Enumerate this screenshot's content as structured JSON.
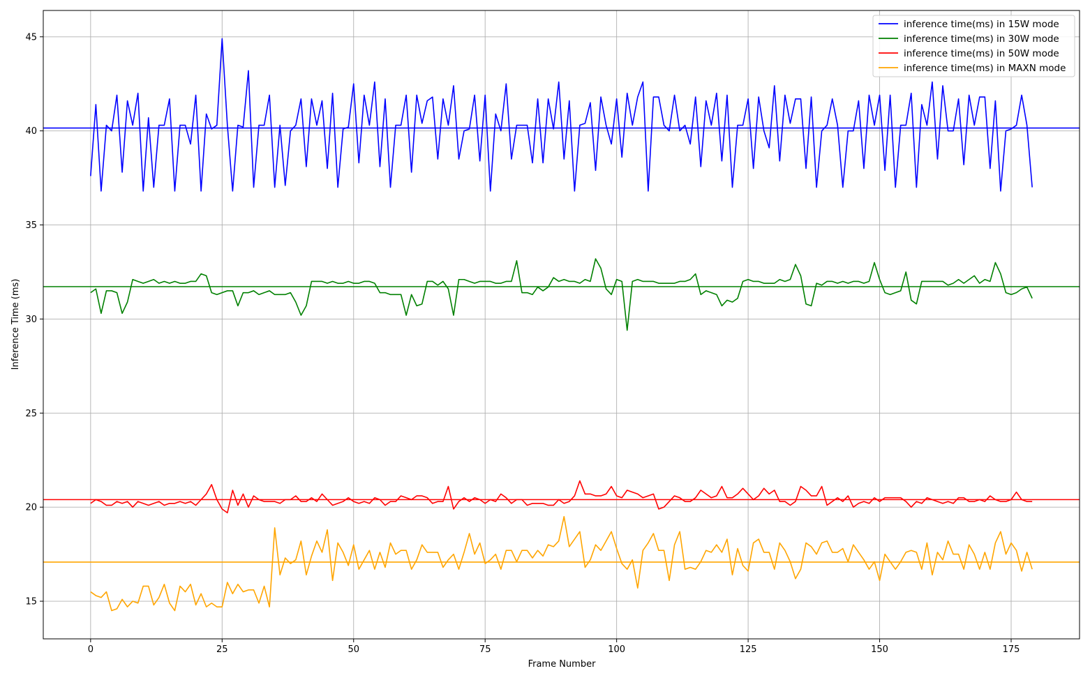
{
  "chart_data": {
    "type": "line",
    "title": "",
    "xlabel": "Frame Number",
    "ylabel": "Inference Time (ms)",
    "xlim": [
      -9,
      188
    ],
    "ylim": [
      13,
      46.4
    ],
    "xticks": [
      0,
      25,
      50,
      75,
      100,
      125,
      150,
      175
    ],
    "yticks": [
      15,
      20,
      25,
      30,
      35,
      40,
      45
    ],
    "grid": true,
    "legend_position": "top-right",
    "series": [
      {
        "name": "inference time(ms) in 15W mode",
        "color": "#0000ff",
        "mean": 40.15,
        "values": [
          37.6,
          41.4,
          36.8,
          40.3,
          40.0,
          41.9,
          37.8,
          41.6,
          40.3,
          42.0,
          36.8,
          40.7,
          37.0,
          40.3,
          40.3,
          41.7,
          36.8,
          40.3,
          40.3,
          39.3,
          41.9,
          36.8,
          40.9,
          40.1,
          40.3,
          44.9,
          40.3,
          36.8,
          40.3,
          40.2,
          43.2,
          37.0,
          40.3,
          40.3,
          41.9,
          37.0,
          40.3,
          37.1,
          40.0,
          40.3,
          41.7,
          38.1,
          41.7,
          40.3,
          41.6,
          38.0,
          42.0,
          37.0,
          40.1,
          40.2,
          42.5,
          38.3,
          41.9,
          40.3,
          42.6,
          38.1,
          41.7,
          37.0,
          40.3,
          40.3,
          41.9,
          37.8,
          41.9,
          40.4,
          41.6,
          41.8,
          38.5,
          41.7,
          40.3,
          42.4,
          38.5,
          40.0,
          40.1,
          41.9,
          38.4,
          41.9,
          36.8,
          40.9,
          40.0,
          42.5,
          38.5,
          40.3,
          40.3,
          40.3,
          38.3,
          41.7,
          38.3,
          41.7,
          40.1,
          42.6,
          38.5,
          41.6,
          36.8,
          40.3,
          40.4,
          41.5,
          37.9,
          41.8,
          40.3,
          39.3,
          41.7,
          38.6,
          42.0,
          40.3,
          41.8,
          42.6,
          36.8,
          41.8,
          41.8,
          40.3,
          40.0,
          41.9,
          40.0,
          40.3,
          39.3,
          41.8,
          38.1,
          41.6,
          40.3,
          42.0,
          38.4,
          41.9,
          37.0,
          40.3,
          40.3,
          41.7,
          38.0,
          41.8,
          40.0,
          39.1,
          42.4,
          38.4,
          41.9,
          40.4,
          41.7,
          41.7,
          38.0,
          41.8,
          37.0,
          40.0,
          40.3,
          41.7,
          40.3,
          37.0,
          40.0,
          40.0,
          41.6,
          38.0,
          41.9,
          40.3,
          41.9,
          37.9,
          41.9,
          37.0,
          40.3,
          40.3,
          42.0,
          37.0,
          41.4,
          40.3,
          42.6,
          38.5,
          42.4,
          40.0,
          40.0,
          41.7,
          38.2,
          41.9,
          40.3,
          41.8,
          41.8,
          38.0,
          41.6,
          36.8,
          40.0,
          40.1,
          40.3,
          41.9,
          40.3,
          37.0
        ]
      },
      {
        "name": "inference time(ms) in 30W mode",
        "color": "#008000",
        "mean": 31.72,
        "values": [
          31.4,
          31.6,
          30.3,
          31.5,
          31.5,
          31.4,
          30.3,
          30.9,
          32.1,
          32.0,
          31.9,
          32.0,
          32.1,
          31.9,
          32.0,
          31.9,
          32.0,
          31.9,
          31.9,
          32.0,
          32.0,
          32.4,
          32.3,
          31.4,
          31.3,
          31.4,
          31.5,
          31.5,
          30.7,
          31.4,
          31.4,
          31.5,
          31.3,
          31.4,
          31.5,
          31.3,
          31.3,
          31.3,
          31.4,
          30.9,
          30.2,
          30.7,
          32.0,
          32.0,
          32.0,
          31.9,
          32.0,
          31.9,
          31.9,
          32.0,
          31.9,
          31.9,
          32.0,
          32.0,
          31.9,
          31.4,
          31.4,
          31.3,
          31.3,
          31.3,
          30.2,
          31.3,
          30.7,
          30.8,
          32.0,
          32.0,
          31.8,
          32.0,
          31.6,
          30.2,
          32.1,
          32.1,
          32.0,
          31.9,
          32.0,
          32.0,
          32.0,
          31.9,
          31.9,
          32.0,
          32.0,
          33.1,
          31.4,
          31.4,
          31.3,
          31.7,
          31.5,
          31.7,
          32.2,
          32.0,
          32.1,
          32.0,
          32.0,
          31.9,
          32.1,
          32.0,
          33.2,
          32.7,
          31.6,
          31.3,
          32.1,
          32.0,
          29.4,
          32.0,
          32.1,
          32.0,
          32.0,
          32.0,
          31.9,
          31.9,
          31.9,
          31.9,
          32.0,
          32.0,
          32.1,
          32.4,
          31.3,
          31.5,
          31.4,
          31.3,
          30.7,
          31.0,
          30.9,
          31.1,
          32.0,
          32.1,
          32.0,
          32.0,
          31.9,
          31.9,
          31.9,
          32.1,
          32.0,
          32.1,
          32.9,
          32.3,
          30.8,
          30.7,
          31.9,
          31.8,
          32.0,
          32.0,
          31.9,
          32.0,
          31.9,
          32.0,
          32.0,
          31.9,
          32.0,
          33.0,
          32.1,
          31.4,
          31.3,
          31.4,
          31.5,
          32.5,
          31.0,
          30.8,
          32.0,
          32.0,
          32.0,
          32.0,
          32.0,
          31.8,
          31.9,
          32.1,
          31.9,
          32.1,
          32.3,
          31.9,
          32.1,
          32.0,
          33.0,
          32.4,
          31.4,
          31.3,
          31.4,
          31.6,
          31.7,
          31.1
        ]
      },
      {
        "name": "inference time(ms) in 50W mode",
        "color": "#ff0000",
        "mean": 20.4,
        "values": [
          20.2,
          20.4,
          20.3,
          20.1,
          20.1,
          20.3,
          20.2,
          20.3,
          20.0,
          20.3,
          20.2,
          20.1,
          20.2,
          20.3,
          20.1,
          20.2,
          20.2,
          20.3,
          20.2,
          20.3,
          20.1,
          20.4,
          20.7,
          21.2,
          20.4,
          19.9,
          19.7,
          20.9,
          20.1,
          20.7,
          20.0,
          20.6,
          20.4,
          20.3,
          20.3,
          20.3,
          20.2,
          20.4,
          20.4,
          20.6,
          20.3,
          20.3,
          20.5,
          20.3,
          20.7,
          20.4,
          20.1,
          20.2,
          20.3,
          20.5,
          20.3,
          20.2,
          20.3,
          20.2,
          20.5,
          20.4,
          20.1,
          20.3,
          20.3,
          20.6,
          20.5,
          20.4,
          20.6,
          20.6,
          20.5,
          20.2,
          20.3,
          20.3,
          21.1,
          19.9,
          20.3,
          20.5,
          20.3,
          20.5,
          20.4,
          20.2,
          20.4,
          20.3,
          20.7,
          20.5,
          20.2,
          20.4,
          20.4,
          20.1,
          20.2,
          20.2,
          20.2,
          20.1,
          20.1,
          20.4,
          20.2,
          20.3,
          20.6,
          21.4,
          20.7,
          20.7,
          20.6,
          20.6,
          20.7,
          21.1,
          20.6,
          20.5,
          20.9,
          20.8,
          20.7,
          20.5,
          20.6,
          20.7,
          19.9,
          20.0,
          20.3,
          20.6,
          20.5,
          20.3,
          20.3,
          20.5,
          20.9,
          20.7,
          20.5,
          20.6,
          21.1,
          20.5,
          20.5,
          20.7,
          21.0,
          20.7,
          20.4,
          20.6,
          21.0,
          20.7,
          20.9,
          20.3,
          20.3,
          20.1,
          20.3,
          21.1,
          20.9,
          20.6,
          20.6,
          21.1,
          20.1,
          20.3,
          20.5,
          20.3,
          20.6,
          20.0,
          20.2,
          20.3,
          20.2,
          20.5,
          20.3,
          20.5,
          20.5,
          20.5,
          20.5,
          20.3,
          20.0,
          20.3,
          20.2,
          20.5,
          20.4,
          20.3,
          20.2,
          20.3,
          20.2,
          20.5,
          20.5,
          20.3,
          20.3,
          20.4,
          20.3,
          20.6,
          20.4,
          20.3,
          20.3,
          20.4,
          20.8,
          20.4,
          20.3,
          20.3
        ]
      },
      {
        "name": "inference time(ms) in MAXN mode",
        "color": "#ffa500",
        "mean": 17.08,
        "values": [
          15.5,
          15.3,
          15.2,
          15.5,
          14.5,
          14.6,
          15.1,
          14.7,
          15.0,
          14.9,
          15.8,
          15.8,
          14.8,
          15.2,
          15.9,
          14.9,
          14.5,
          15.8,
          15.5,
          15.9,
          14.8,
          15.4,
          14.7,
          14.9,
          14.7,
          14.7,
          16.0,
          15.4,
          15.9,
          15.5,
          15.6,
          15.6,
          14.9,
          15.8,
          14.7,
          18.9,
          16.4,
          17.3,
          17.0,
          17.2,
          18.2,
          16.4,
          17.4,
          18.2,
          17.6,
          18.8,
          16.1,
          18.1,
          17.6,
          16.9,
          18.0,
          16.7,
          17.2,
          17.7,
          16.7,
          17.6,
          16.8,
          18.1,
          17.5,
          17.7,
          17.7,
          16.7,
          17.2,
          18.0,
          17.6,
          17.6,
          17.6,
          16.8,
          17.2,
          17.5,
          16.7,
          17.6,
          18.6,
          17.5,
          18.1,
          17.0,
          17.2,
          17.5,
          16.7,
          17.7,
          17.7,
          17.1,
          17.7,
          17.7,
          17.3,
          17.7,
          17.4,
          18.0,
          17.9,
          18.2,
          19.5,
          17.9,
          18.3,
          18.7,
          16.8,
          17.2,
          18.0,
          17.7,
          18.2,
          18.7,
          17.8,
          17.0,
          16.7,
          17.2,
          15.7,
          17.7,
          18.1,
          18.6,
          17.7,
          17.7,
          16.1,
          18.0,
          18.7,
          16.7,
          16.8,
          16.7,
          17.1,
          17.7,
          17.6,
          18.0,
          17.6,
          18.3,
          16.4,
          17.8,
          16.9,
          16.6,
          18.1,
          18.3,
          17.6,
          17.6,
          16.7,
          18.1,
          17.7,
          17.1,
          16.2,
          16.7,
          18.1,
          17.9,
          17.5,
          18.1,
          18.2,
          17.6,
          17.6,
          17.8,
          17.1,
          18.0,
          17.6,
          17.2,
          16.7,
          17.1,
          16.1,
          17.5,
          17.1,
          16.7,
          17.1,
          17.6,
          17.7,
          17.6,
          16.7,
          18.1,
          16.4,
          17.6,
          17.2,
          18.2,
          17.5,
          17.5,
          16.7,
          18.0,
          17.5,
          16.7,
          17.6,
          16.7,
          18.1,
          18.7,
          17.5,
          18.1,
          17.7,
          16.6,
          17.6,
          16.7
        ]
      }
    ]
  }
}
